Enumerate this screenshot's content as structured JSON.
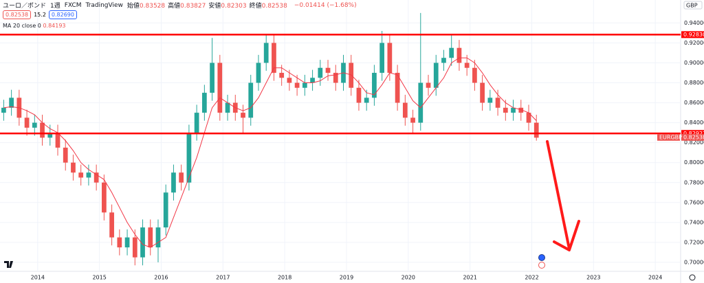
{
  "header": {
    "symbol": "ユーロ／ポンド",
    "interval": "1週",
    "exchange": "FXCM",
    "source": "TradingView",
    "ohlc": [
      {
        "label": "始値",
        "value": "0.83528"
      },
      {
        "label": "高値",
        "value": "0.83827"
      },
      {
        "label": "安値",
        "value": "0.82303"
      },
      {
        "label": "終値",
        "value": "0.82538"
      }
    ],
    "change": "−0.01414 (−1.68%)",
    "sell": "0.82538",
    "spread": "15.2",
    "buy": "0.82690",
    "ma_value": "0.84193",
    "currency": "GBP"
  },
  "chart_data": {
    "type": "candlestick",
    "up_color": "#26a69a",
    "down_color": "#ef5350",
    "grid": true,
    "x": [
      2013.45,
      2013.575,
      2013.7,
      2013.825,
      2013.95,
      2014.075,
      2014.2,
      2014.325,
      2014.45,
      2014.575,
      2014.7,
      2014.825,
      2014.95,
      2015.075,
      2015.2,
      2015.325,
      2015.45,
      2015.575,
      2015.7,
      2015.825,
      2015.95,
      2016.075,
      2016.2,
      2016.325,
      2016.45,
      2016.575,
      2016.7,
      2016.825,
      2016.95,
      2017.075,
      2017.2,
      2017.325,
      2017.45,
      2017.575,
      2017.7,
      2017.825,
      2017.95,
      2018.075,
      2018.2,
      2018.325,
      2018.45,
      2018.575,
      2018.7,
      2018.825,
      2018.95,
      2019.075,
      2019.2,
      2019.325,
      2019.45,
      2019.575,
      2019.7,
      2019.825,
      2019.95,
      2020.075,
      2020.2,
      2020.325,
      2020.45,
      2020.575,
      2020.7,
      2020.825,
      2020.95,
      2021.075,
      2021.2,
      2021.325,
      2021.45,
      2021.575,
      2021.7,
      2021.825,
      2021.95,
      2022.075
    ],
    "open": [
      0.85,
      0.855,
      0.865,
      0.845,
      0.835,
      0.84,
      0.825,
      0.83,
      0.815,
      0.8,
      0.79,
      0.785,
      0.79,
      0.78,
      0.75,
      0.725,
      0.715,
      0.725,
      0.705,
      0.735,
      0.715,
      0.735,
      0.77,
      0.79,
      0.78,
      0.83,
      0.85,
      0.87,
      0.9,
      0.85,
      0.86,
      0.85,
      0.845,
      0.88,
      0.9,
      0.92,
      0.89,
      0.885,
      0.88,
      0.875,
      0.88,
      0.885,
      0.895,
      0.89,
      0.88,
      0.9,
      0.875,
      0.86,
      0.865,
      0.89,
      0.92,
      0.89,
      0.86,
      0.845,
      0.84,
      0.88,
      0.875,
      0.9,
      0.905,
      0.915,
      0.9,
      0.895,
      0.88,
      0.86,
      0.865,
      0.855,
      0.85,
      0.855,
      0.85,
      0.84
    ],
    "high": [
      0.863,
      0.873,
      0.873,
      0.853,
      0.848,
      0.848,
      0.838,
      0.838,
      0.823,
      0.808,
      0.798,
      0.798,
      0.798,
      0.788,
      0.758,
      0.733,
      0.733,
      0.733,
      0.743,
      0.743,
      0.743,
      0.778,
      0.798,
      0.798,
      0.838,
      0.858,
      0.878,
      0.925,
      0.908,
      0.868,
      0.868,
      0.858,
      0.888,
      0.908,
      0.928,
      0.928,
      0.898,
      0.893,
      0.888,
      0.888,
      0.893,
      0.903,
      0.903,
      0.898,
      0.908,
      0.908,
      0.883,
      0.873,
      0.898,
      0.932,
      0.928,
      0.898,
      0.868,
      0.853,
      0.95,
      0.888,
      0.908,
      0.913,
      0.928,
      0.923,
      0.908,
      0.903,
      0.888,
      0.873,
      0.873,
      0.863,
      0.863,
      0.863,
      0.858,
      0.848
    ],
    "low": [
      0.842,
      0.847,
      0.837,
      0.827,
      0.827,
      0.817,
      0.817,
      0.807,
      0.792,
      0.782,
      0.777,
      0.777,
      0.772,
      0.742,
      0.717,
      0.707,
      0.707,
      0.697,
      0.697,
      0.707,
      0.7,
      0.727,
      0.762,
      0.772,
      0.772,
      0.822,
      0.842,
      0.862,
      0.842,
      0.842,
      0.842,
      0.83,
      0.837,
      0.872,
      0.892,
      0.882,
      0.877,
      0.872,
      0.867,
      0.867,
      0.872,
      0.877,
      0.882,
      0.872,
      0.872,
      0.867,
      0.852,
      0.852,
      0.857,
      0.882,
      0.882,
      0.852,
      0.837,
      0.83,
      0.832,
      0.867,
      0.867,
      0.892,
      0.897,
      0.892,
      0.887,
      0.872,
      0.852,
      0.852,
      0.847,
      0.842,
      0.842,
      0.842,
      0.832,
      0.822
    ],
    "close": [
      0.855,
      0.865,
      0.845,
      0.835,
      0.84,
      0.825,
      0.83,
      0.815,
      0.8,
      0.79,
      0.785,
      0.79,
      0.78,
      0.75,
      0.725,
      0.715,
      0.725,
      0.705,
      0.735,
      0.715,
      0.735,
      0.77,
      0.79,
      0.78,
      0.83,
      0.85,
      0.87,
      0.9,
      0.85,
      0.86,
      0.85,
      0.845,
      0.88,
      0.9,
      0.92,
      0.89,
      0.885,
      0.88,
      0.875,
      0.88,
      0.885,
      0.895,
      0.89,
      0.88,
      0.9,
      0.875,
      0.86,
      0.865,
      0.89,
      0.92,
      0.89,
      0.86,
      0.845,
      0.84,
      0.88,
      0.875,
      0.9,
      0.905,
      0.915,
      0.9,
      0.895,
      0.88,
      0.86,
      0.865,
      0.855,
      0.85,
      0.855,
      0.85,
      0.84,
      0.825
    ],
    "ma": {
      "name": "MA 20 close 0",
      "color": "#f23645",
      "values": [
        0.855,
        0.856,
        0.855,
        0.852,
        0.848,
        0.84,
        0.834,
        0.83,
        0.822,
        0.812,
        0.8,
        0.793,
        0.788,
        0.783,
        0.77,
        0.755,
        0.74,
        0.728,
        0.718,
        0.715,
        0.72,
        0.725,
        0.745,
        0.765,
        0.785,
        0.805,
        0.83,
        0.855,
        0.865,
        0.86,
        0.855,
        0.852,
        0.855,
        0.865,
        0.88,
        0.895,
        0.895,
        0.89,
        0.885,
        0.88,
        0.88,
        0.882,
        0.887,
        0.888,
        0.89,
        0.888,
        0.88,
        0.87,
        0.868,
        0.878,
        0.89,
        0.888,
        0.875,
        0.862,
        0.855,
        0.865,
        0.875,
        0.885,
        0.9,
        0.905,
        0.905,
        0.9,
        0.89,
        0.878,
        0.868,
        0.86,
        0.855,
        0.853,
        0.85,
        0.842
      ]
    },
    "levels": [
      {
        "value": 0.9283,
        "label": "0.92830"
      },
      {
        "value": 0.82922,
        "label": "0.82922"
      }
    ],
    "level_color": "#ff0000",
    "last": {
      "value": 0.82538,
      "label": "0.82538",
      "symbol": "EURGBP"
    },
    "xlim": [
      2013.39,
      2024.41
    ],
    "ylim": [
      0.691,
      0.963
    ],
    "xticks": [
      2014,
      2015,
      2016,
      2017,
      2018,
      2019,
      2020,
      2021,
      2022,
      2023,
      2024
    ],
    "yticks": [
      {
        "value": 0.7,
        "label": "0.70000"
      },
      {
        "value": 0.72,
        "label": "0.72000"
      },
      {
        "value": 0.74,
        "label": "0.74000"
      },
      {
        "value": 0.76,
        "label": "0.76000"
      },
      {
        "value": 0.78,
        "label": "0.78000"
      },
      {
        "value": 0.8,
        "label": "0.80000"
      },
      {
        "value": 0.82,
        "label": "0.82000"
      },
      {
        "value": 0.84,
        "label": "0.84000"
      },
      {
        "value": 0.86,
        "label": "0.86000"
      },
      {
        "value": 0.88,
        "label": "0.88000"
      },
      {
        "value": 0.9,
        "label": "0.90000"
      },
      {
        "value": 0.92,
        "label": "0.92000"
      },
      {
        "value": 0.94,
        "label": "0.94000"
      }
    ]
  }
}
